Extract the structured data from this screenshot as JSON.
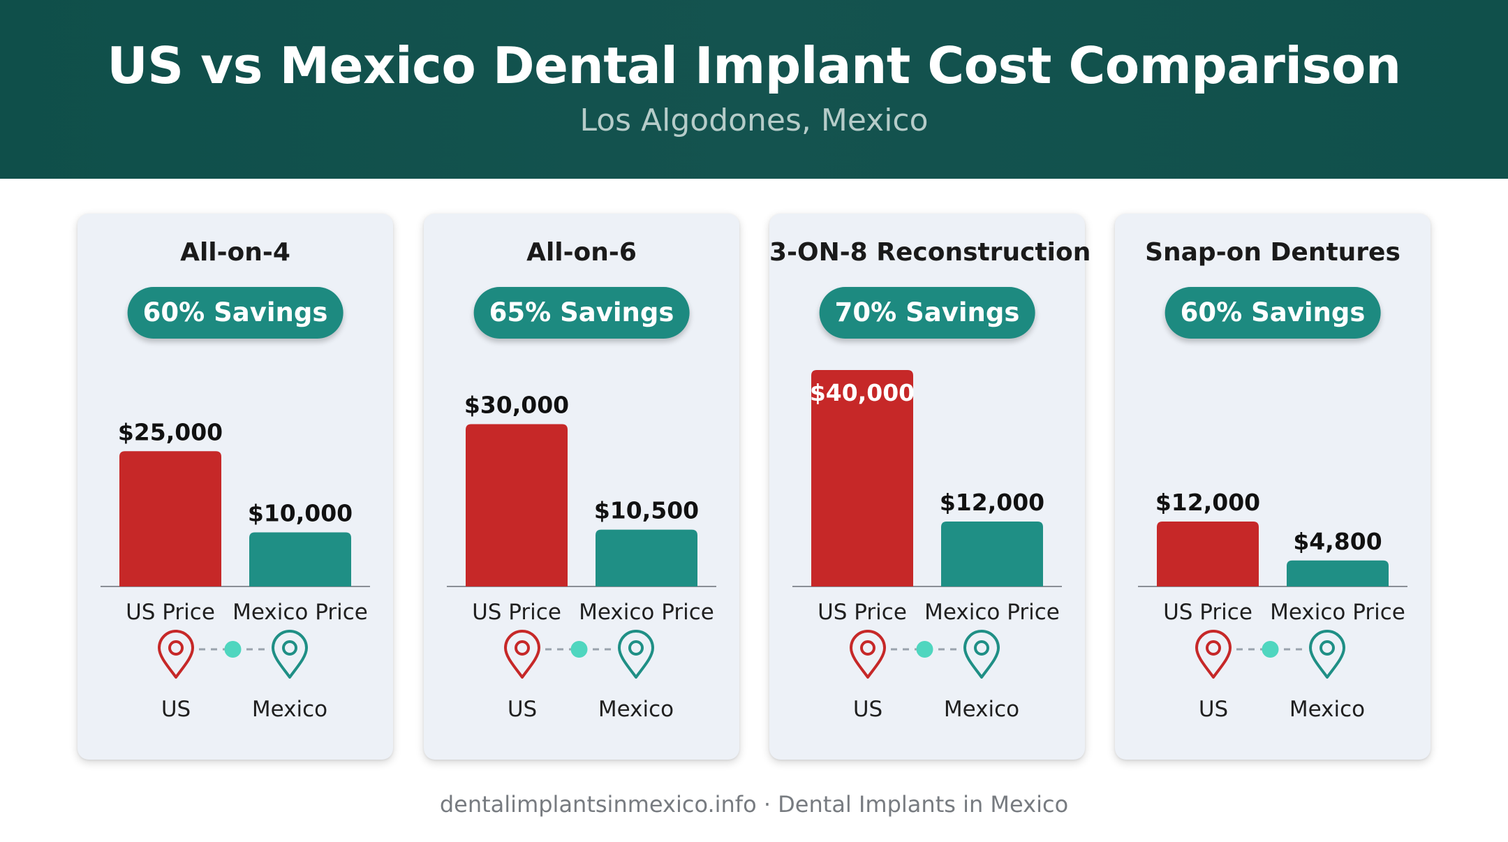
{
  "header": {
    "title": "US vs Mexico Dental Implant Cost Comparison",
    "subtitle": "Los Algodones, Mexico"
  },
  "colors": {
    "header_bg": "#11504b",
    "us_bar": "#c62828",
    "mexico_bar": "#1f8f85",
    "badge_bg": "#1d8a80",
    "card_bg": "#edf1f7"
  },
  "chart_data": [
    {
      "type": "bar",
      "title": "All-on-4",
      "badge": "60% Savings",
      "categories": [
        "US Price",
        "Mexico Price"
      ],
      "values": [
        25000,
        10000
      ],
      "value_labels": [
        "$25,000",
        "$10,000"
      ],
      "ylim": [
        0,
        40000
      ],
      "grid": false,
      "locations": [
        "US",
        "Mexico"
      ]
    },
    {
      "type": "bar",
      "title": "All-on-6",
      "badge": "65% Savings",
      "categories": [
        "US Price",
        "Mexico Price"
      ],
      "values": [
        30000,
        10500
      ],
      "value_labels": [
        "$30,000",
        "$10,500"
      ],
      "ylim": [
        0,
        40000
      ],
      "grid": false,
      "locations": [
        "US",
        "Mexico"
      ]
    },
    {
      "type": "bar",
      "title": "3-ON-8 Reconstruction",
      "badge": "70% Savings",
      "categories": [
        "US Price",
        "Mexico Price"
      ],
      "values": [
        40000,
        12000
      ],
      "value_labels": [
        "$40,000",
        "$12,000"
      ],
      "ylim": [
        0,
        40000
      ],
      "grid": false,
      "locations": [
        "US",
        "Mexico"
      ]
    },
    {
      "type": "bar",
      "title": "Snap-on Dentures",
      "badge": "60% Savings",
      "categories": [
        "US Price",
        "Mexico Price"
      ],
      "values": [
        12000,
        4800
      ],
      "value_labels": [
        "$12,000",
        "$4,800"
      ],
      "ylim": [
        0,
        40000
      ],
      "grid": false,
      "locations": [
        "US",
        "Mexico"
      ]
    }
  ],
  "footer": {
    "text": "dentalimplantsinmexico.info · Dental Implants in Mexico"
  }
}
